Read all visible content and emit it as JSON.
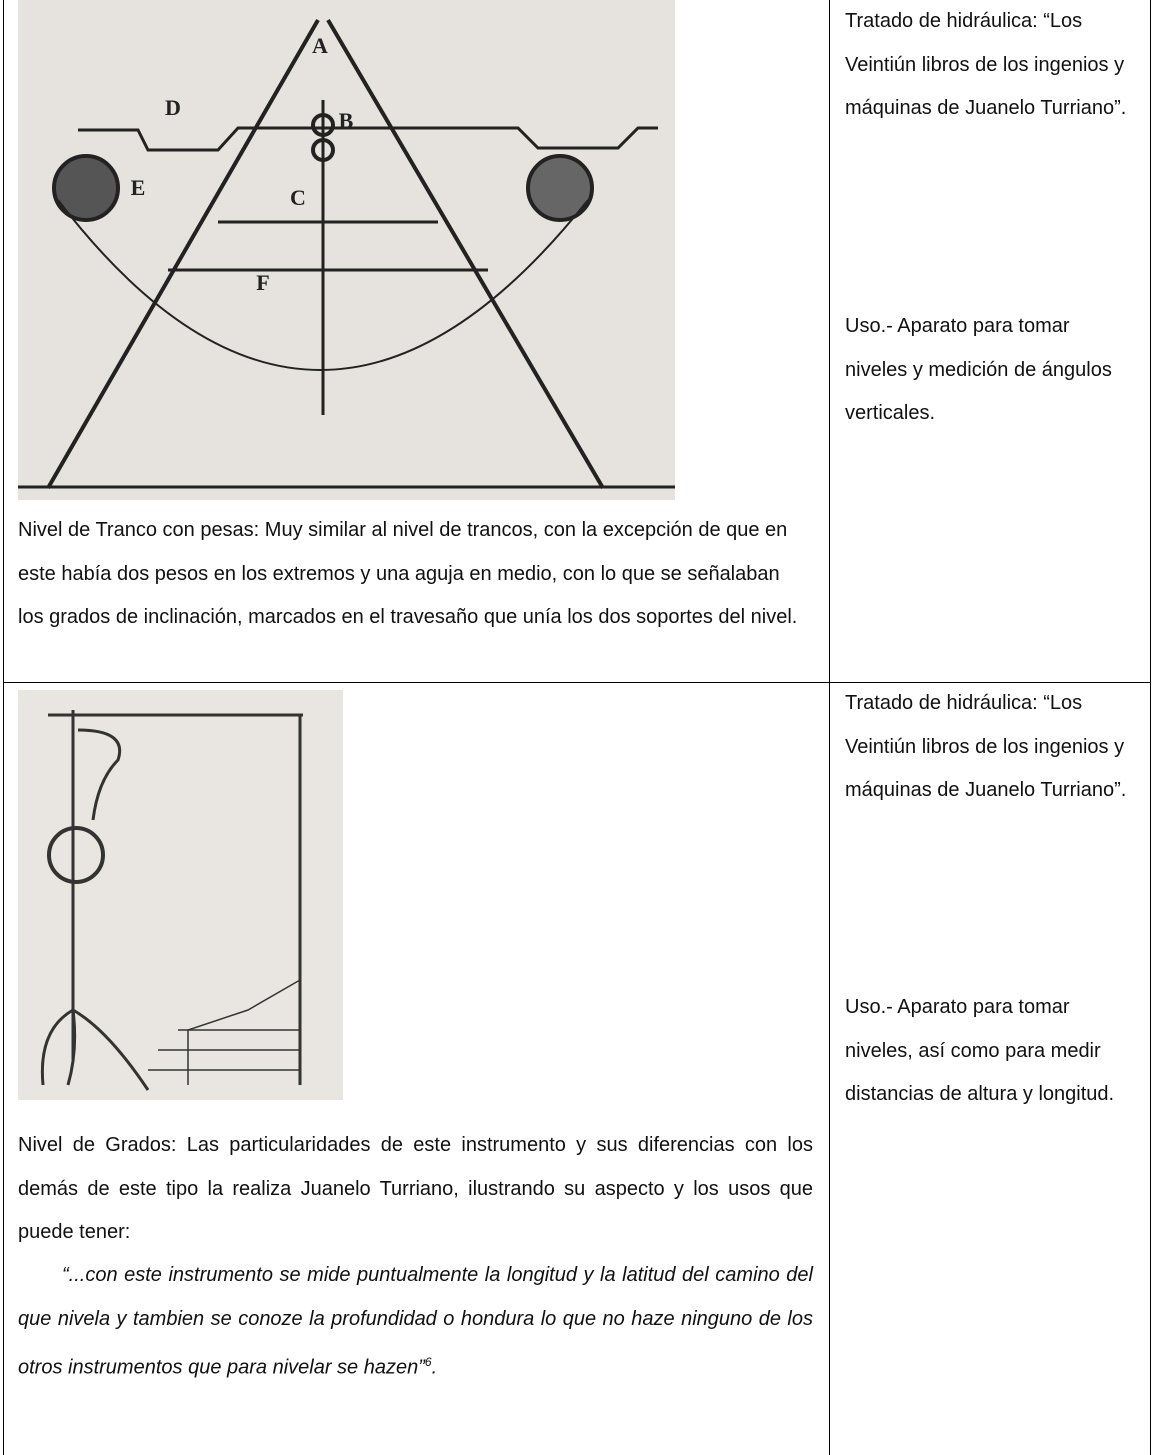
{
  "table": {
    "rows": [
      {
        "figure_labels": [
          "A",
          "B",
          "C",
          "D",
          "E",
          "F"
        ],
        "description": "Nivel de Tranco con pesas: Muy similar al nivel de trancos, con la excepción de que en este había dos pesos en los extremos y una aguja en medio, con  lo que se señalaban los grados de inclinación, marcados en el travesaño que unía los dos soportes del nivel.",
        "source": "Tratado de hidráulica: “Los Veintiún libros de los ingenios y máquinas de Juanelo Turriano”.",
        "use": "Uso.- Aparato para tomar niveles y medición de ángulos verticales."
      },
      {
        "description": "Nivel de Grados: Las particularidades de este instrumento y sus diferencias con los demás de este tipo la realiza Juanelo Turriano, ilustrando su aspecto y los usos que puede tener:",
        "quote": "“...con este instrumento se mide puntualmente la longitud y la latitud del camino del que nivela y tambien se conoze la profundidad o hondura lo que no haze ninguno de los otros instrumentos que para nivelar se hazen”",
        "quote_note": "6",
        "quote_end": ".",
        "source": "Tratado de hidráulica: “Los Veintiún libros de los ingenios y máquinas de Juanelo Turriano”.",
        "use": "Uso.- Aparato para tomar niveles, así como para medir distancias de altura y longitud."
      }
    ]
  }
}
